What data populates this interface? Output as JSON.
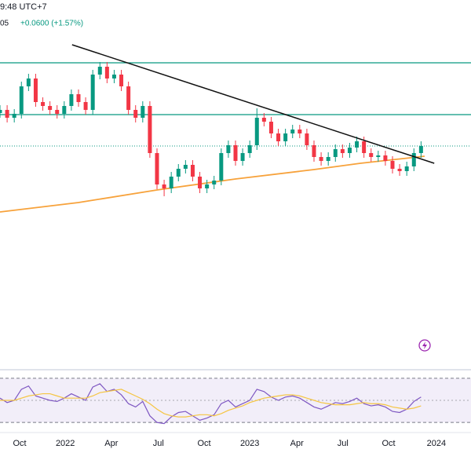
{
  "header": {
    "time": "9:48 UTC+7",
    "price": "05",
    "change": "+0.0600 (+1.57%)"
  },
  "chart_data": [
    {
      "type": "candlestick",
      "x": [
        0,
        2,
        4,
        6,
        8,
        10,
        12,
        14,
        16,
        18,
        20,
        22,
        24,
        26,
        28,
        30,
        32,
        34,
        36,
        38,
        40,
        42,
        44,
        46,
        48,
        50,
        52,
        54,
        56,
        58,
        60,
        62,
        64,
        66,
        68,
        70,
        72,
        74,
        76,
        78,
        80,
        82,
        84,
        86,
        88,
        90,
        92,
        94,
        96,
        98,
        100,
        102,
        104,
        106,
        108,
        110,
        112,
        114,
        116,
        118
      ],
      "open": [
        4.3,
        4.34,
        4.24,
        4.29,
        4.64,
        4.74,
        4.44,
        4.39,
        4.34,
        4.29,
        4.39,
        4.54,
        4.44,
        4.34,
        4.79,
        4.89,
        4.74,
        4.79,
        4.64,
        4.34,
        4.24,
        4.39,
        3.79,
        3.39,
        3.34,
        3.49,
        3.59,
        3.64,
        3.49,
        3.34,
        3.39,
        3.44,
        3.79,
        3.89,
        3.69,
        3.79,
        3.89,
        4.24,
        4.19,
        4.04,
        3.94,
        4.04,
        4.09,
        4.04,
        3.89,
        3.74,
        3.69,
        3.74,
        3.84,
        3.79,
        3.86,
        3.94,
        3.79,
        3.74,
        3.76,
        3.69,
        3.59,
        3.56,
        3.62,
        3.79
      ],
      "high": [
        4.4,
        4.4,
        4.35,
        4.7,
        4.8,
        4.8,
        4.5,
        4.45,
        4.4,
        4.45,
        4.6,
        4.6,
        4.5,
        4.85,
        4.95,
        4.95,
        4.85,
        4.85,
        4.7,
        4.4,
        4.45,
        4.45,
        3.85,
        3.45,
        3.55,
        3.65,
        3.7,
        3.7,
        3.55,
        3.45,
        3.5,
        3.85,
        3.95,
        3.95,
        3.85,
        3.95,
        4.36,
        4.3,
        4.25,
        4.1,
        4.1,
        4.15,
        4.15,
        4.1,
        3.95,
        3.8,
        3.8,
        3.9,
        3.9,
        3.92,
        4.0,
        4.0,
        3.85,
        3.82,
        3.82,
        3.75,
        3.65,
        3.68,
        3.85,
        3.94
      ],
      "low": [
        4.24,
        4.18,
        4.18,
        4.23,
        4.58,
        4.38,
        4.33,
        4.28,
        4.23,
        4.23,
        4.33,
        4.38,
        4.28,
        4.28,
        4.73,
        4.68,
        4.68,
        4.58,
        4.28,
        4.18,
        4.18,
        3.73,
        3.33,
        3.24,
        3.28,
        3.43,
        3.53,
        3.43,
        3.28,
        3.28,
        3.33,
        3.38,
        3.73,
        3.63,
        3.63,
        3.73,
        3.83,
        4.13,
        3.98,
        3.88,
        3.88,
        3.98,
        3.98,
        3.83,
        3.68,
        3.63,
        3.63,
        3.68,
        3.73,
        3.73,
        3.8,
        3.73,
        3.68,
        3.68,
        3.63,
        3.53,
        3.5,
        3.5,
        3.56,
        3.73
      ],
      "close": [
        4.34,
        4.24,
        4.29,
        4.64,
        4.74,
        4.44,
        4.39,
        4.34,
        4.29,
        4.39,
        4.54,
        4.44,
        4.34,
        4.79,
        4.89,
        4.74,
        4.79,
        4.64,
        4.34,
        4.24,
        4.39,
        3.79,
        3.39,
        3.34,
        3.49,
        3.59,
        3.64,
        3.49,
        3.34,
        3.39,
        3.44,
        3.79,
        3.89,
        3.69,
        3.79,
        3.89,
        4.24,
        4.19,
        4.04,
        3.94,
        4.04,
        4.09,
        4.04,
        3.89,
        3.74,
        3.69,
        3.74,
        3.84,
        3.79,
        3.86,
        3.94,
        3.79,
        3.74,
        3.76,
        3.69,
        3.59,
        3.56,
        3.62,
        3.79,
        3.88
      ],
      "up_color": "#089981",
      "down_color": "#f23645",
      "xlim": [
        0,
        132
      ],
      "ylim": [
        1.04,
        5.74
      ],
      "xticks": [
        {
          "value": 5.5,
          "label": "Oct"
        },
        {
          "value": 18.3,
          "label": "2022"
        },
        {
          "value": 31.2,
          "label": "Apr"
        },
        {
          "value": 44.4,
          "label": "Jul"
        },
        {
          "value": 57.2,
          "label": "Oct"
        },
        {
          "value": 70,
          "label": "2023"
        },
        {
          "value": 83.2,
          "label": "Apr"
        },
        {
          "value": 96.1,
          "label": "Jul"
        },
        {
          "value": 108.9,
          "label": "Oct"
        },
        {
          "value": 122.3,
          "label": "2024"
        }
      ],
      "levels": [
        {
          "value": 4.94,
          "color": "#089981"
        },
        {
          "value": 4.28,
          "color": "#089981"
        }
      ],
      "last_price": {
        "value": 3.88,
        "color": "#089981"
      },
      "trendline": {
        "x": [
          20.2,
          121.7
        ],
        "values": [
          5.17,
          3.66
        ],
        "color": "#111111"
      },
      "moving_average": {
        "x": [
          0,
          22,
          44,
          66,
          88,
          101,
          119
        ],
        "values": [
          3.04,
          3.16,
          3.32,
          3.46,
          3.58,
          3.66,
          3.75
        ],
        "color": "#f7a23b"
      }
    },
    {
      "type": "line",
      "series": [
        {
          "values": [
            52,
            48,
            50,
            60,
            63,
            54,
            52,
            50,
            49,
            52,
            56,
            53,
            50,
            62,
            65,
            58,
            60,
            55,
            47,
            44,
            49,
            36,
            30,
            29,
            35,
            39,
            40,
            36,
            32,
            34,
            37,
            47,
            50,
            44,
            47,
            50,
            60,
            58,
            53,
            50,
            53,
            54,
            52,
            48,
            44,
            42,
            45,
            48,
            47,
            49,
            52,
            47,
            45,
            46,
            44,
            40,
            39,
            42,
            49,
            53
          ],
          "color": "#7e57c2"
        },
        {
          "values": [
            50,
            50,
            50,
            52,
            54,
            55,
            56,
            56,
            54,
            52,
            52,
            52,
            52,
            54,
            57,
            58,
            59,
            60,
            57,
            54,
            51,
            47,
            42,
            38,
            36,
            35,
            35,
            36,
            37,
            37,
            36,
            38,
            41,
            43,
            45,
            48,
            50,
            52,
            53,
            54,
            55,
            55,
            54,
            52,
            50,
            48,
            47,
            46,
            46,
            46,
            47,
            48,
            47,
            47,
            46,
            44,
            43,
            42,
            43,
            45
          ],
          "color": "#f5c542"
        }
      ],
      "ylim": [
        23,
        77
      ],
      "bands": [
        70,
        30
      ],
      "midline": 50,
      "band_fill": "#7e57c2"
    }
  ]
}
